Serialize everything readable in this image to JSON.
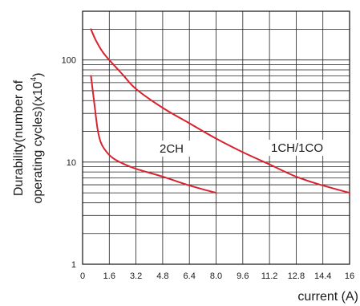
{
  "chart_data": {
    "type": "line",
    "title": "",
    "xlabel": "current (A)",
    "ylabel_line1": "Durability(number of",
    "ylabel_line2_prefix": "operating cycles)(x10",
    "ylabel_line2_exp": "4",
    "ylabel_line2_suffix": ")",
    "x_ticks": [
      "0",
      "1.6",
      "3.2",
      "4.8",
      "6.4",
      "8.0",
      "9.6",
      "11.2",
      "12.8",
      "14.4",
      "16"
    ],
    "y_ticks": [
      "1",
      "10",
      "100"
    ],
    "xlim": [
      0,
      16
    ],
    "ylim": [
      1,
      300
    ],
    "y_scale": "log",
    "grid": true,
    "curve_color": "#d8222f",
    "series": [
      {
        "name": "1CH/1CO",
        "x": [
          0.5,
          0.8,
          1.2,
          1.6,
          2.4,
          3.2,
          4.8,
          6.4,
          8.0,
          9.6,
          11.2,
          12.8,
          14.4,
          16.0
        ],
        "y": [
          200,
          155,
          120,
          100,
          72,
          52,
          34,
          24,
          17,
          12.5,
          9.5,
          7.2,
          5.9,
          5.0
        ]
      },
      {
        "name": "2CH",
        "x": [
          0.5,
          0.7,
          0.9,
          1.1,
          1.4,
          1.8,
          2.4,
          3.2,
          4.8,
          6.4,
          8.0
        ],
        "y": [
          70,
          38,
          21,
          15.5,
          12.8,
          11.0,
          9.7,
          8.6,
          7.2,
          5.9,
          5.0
        ]
      }
    ]
  }
}
